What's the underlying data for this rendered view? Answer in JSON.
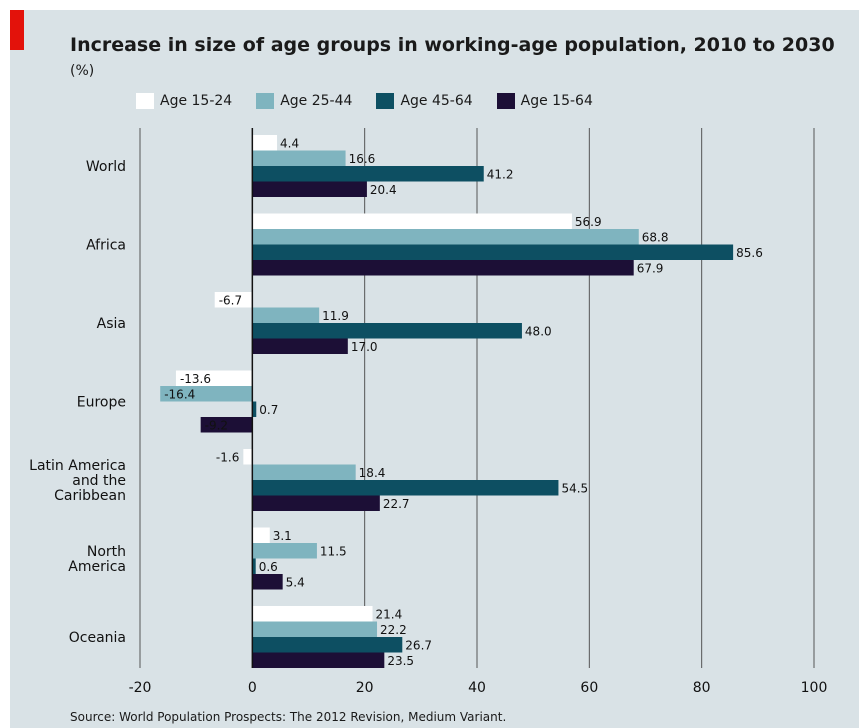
{
  "title": "Increase in size of age groups in working-age population, 2010 to 2030",
  "subtitle": "(%)",
  "source": "Source: World Population Prospects: The 2012 Revision, Medium Variant.",
  "colors": {
    "panel": "#d9e2e6",
    "accent": "#e3120b",
    "grid": "#555555"
  },
  "chart_data": {
    "type": "bar",
    "orientation": "horizontal",
    "categories": [
      "World",
      "Africa",
      "Asia",
      "Europe",
      "Latin America and the Caribbean",
      "North America",
      "Oceania"
    ],
    "category_lines": [
      [
        "World"
      ],
      [
        "Africa"
      ],
      [
        "Asia"
      ],
      [
        "Europe"
      ],
      [
        "Latin America",
        "and the",
        "Caribbean"
      ],
      [
        "North",
        "America"
      ],
      [
        "Oceania"
      ]
    ],
    "series": [
      {
        "name": "Age 15-24",
        "color": "#ffffff",
        "values": [
          4.4,
          56.9,
          -6.7,
          -13.6,
          -1.6,
          3.1,
          21.4
        ],
        "labels": [
          "4.4",
          "56.9",
          "-6.7",
          "-13.6",
          "-1.6",
          "3.1",
          "21.4"
        ]
      },
      {
        "name": "Age 25-44",
        "color": "#7fb4bf",
        "values": [
          16.6,
          68.8,
          11.9,
          -16.4,
          18.4,
          11.5,
          22.2
        ],
        "labels": [
          "16.6",
          "68.8",
          "11.9",
          "-16.4",
          "18.4",
          "11.5",
          "22.2"
        ]
      },
      {
        "name": "Age 45-64",
        "color": "#0d4f62",
        "values": [
          41.2,
          85.6,
          48.0,
          0.7,
          54.5,
          0.6,
          26.7
        ],
        "labels": [
          "41.2",
          "85.6",
          "48.0",
          "0.7",
          "54.5",
          "0.6",
          "26.7"
        ]
      },
      {
        "name": "Age 15-64",
        "color": "#1c0f36",
        "values": [
          20.4,
          67.9,
          17.0,
          -9.2,
          22.7,
          5.4,
          23.5
        ],
        "labels": [
          "20.4",
          "67.9",
          "17.0",
          "-9.2",
          "22.7",
          "5.4",
          "23.5"
        ]
      }
    ],
    "xlim": [
      -20,
      100
    ],
    "xticks": [
      -20,
      0,
      20,
      40,
      60,
      80,
      100
    ],
    "xtick_labels": [
      "-20",
      "0",
      "20",
      "40",
      "60",
      "80",
      "100"
    ],
    "grid": true,
    "legend_position": "top"
  }
}
